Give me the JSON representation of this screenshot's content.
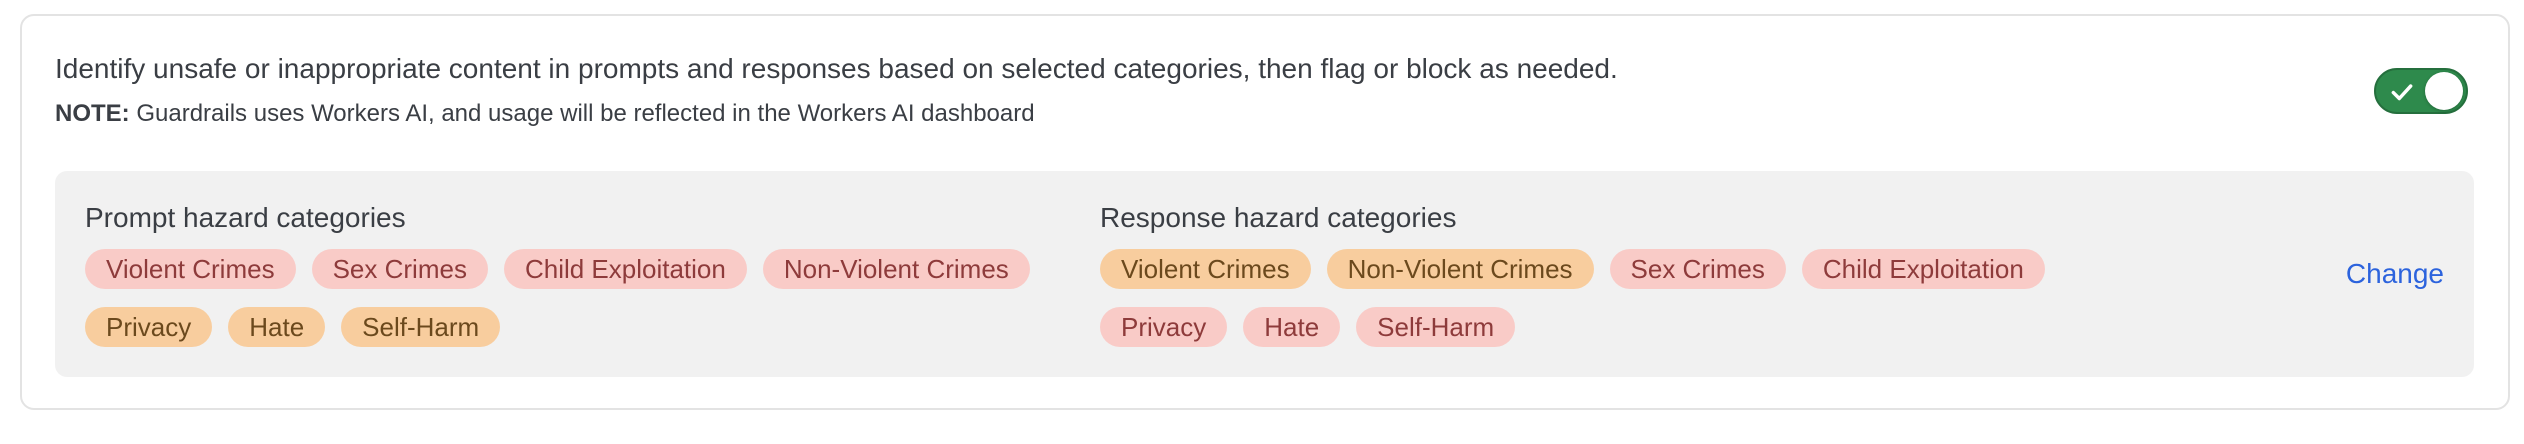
{
  "header": {
    "description": "Identify unsafe or inappropriate content in prompts and responses based on selected categories, then flag or block as needed.",
    "note_label": "NOTE:",
    "note_text": "Guardrails uses Workers AI, and usage will be reflected in the Workers AI dashboard",
    "toggle": {
      "state": "on"
    }
  },
  "panel": {
    "columns": [
      {
        "title": "Prompt hazard categories",
        "rows": [
          [
            {
              "label": "Violent Crimes",
              "color": "red"
            },
            {
              "label": "Sex Crimes",
              "color": "red"
            },
            {
              "label": "Child Exploitation",
              "color": "red"
            },
            {
              "label": "Non-Violent Crimes",
              "color": "red"
            }
          ],
          [
            {
              "label": "Privacy",
              "color": "orange"
            },
            {
              "label": "Hate",
              "color": "orange"
            },
            {
              "label": "Self-Harm",
              "color": "orange"
            }
          ]
        ]
      },
      {
        "title": "Response hazard categories",
        "rows": [
          [
            {
              "label": "Violent Crimes",
              "color": "orange"
            },
            {
              "label": "Non-Violent Crimes",
              "color": "orange"
            },
            {
              "label": "Sex Crimes",
              "color": "red"
            },
            {
              "label": "Child Exploitation",
              "color": "red"
            }
          ],
          [
            {
              "label": "Privacy",
              "color": "red"
            },
            {
              "label": "Hate",
              "color": "red"
            },
            {
              "label": "Self-Harm",
              "color": "red"
            }
          ]
        ]
      }
    ],
    "change_label": "Change"
  },
  "colors": {
    "tag_red_bg": "#F9CBC7",
    "tag_red_text": "#8E3B3B",
    "tag_orange_bg": "#F8CD9E",
    "tag_orange_text": "#6B491D",
    "toggle_on": "#2E8A4C",
    "toggle_on_border": "#256F3D",
    "link_blue": "#2C63DD",
    "panel_bg": "#F1F1F1",
    "card_border": "#E3E3E3",
    "text_main": "#3A3E44"
  }
}
